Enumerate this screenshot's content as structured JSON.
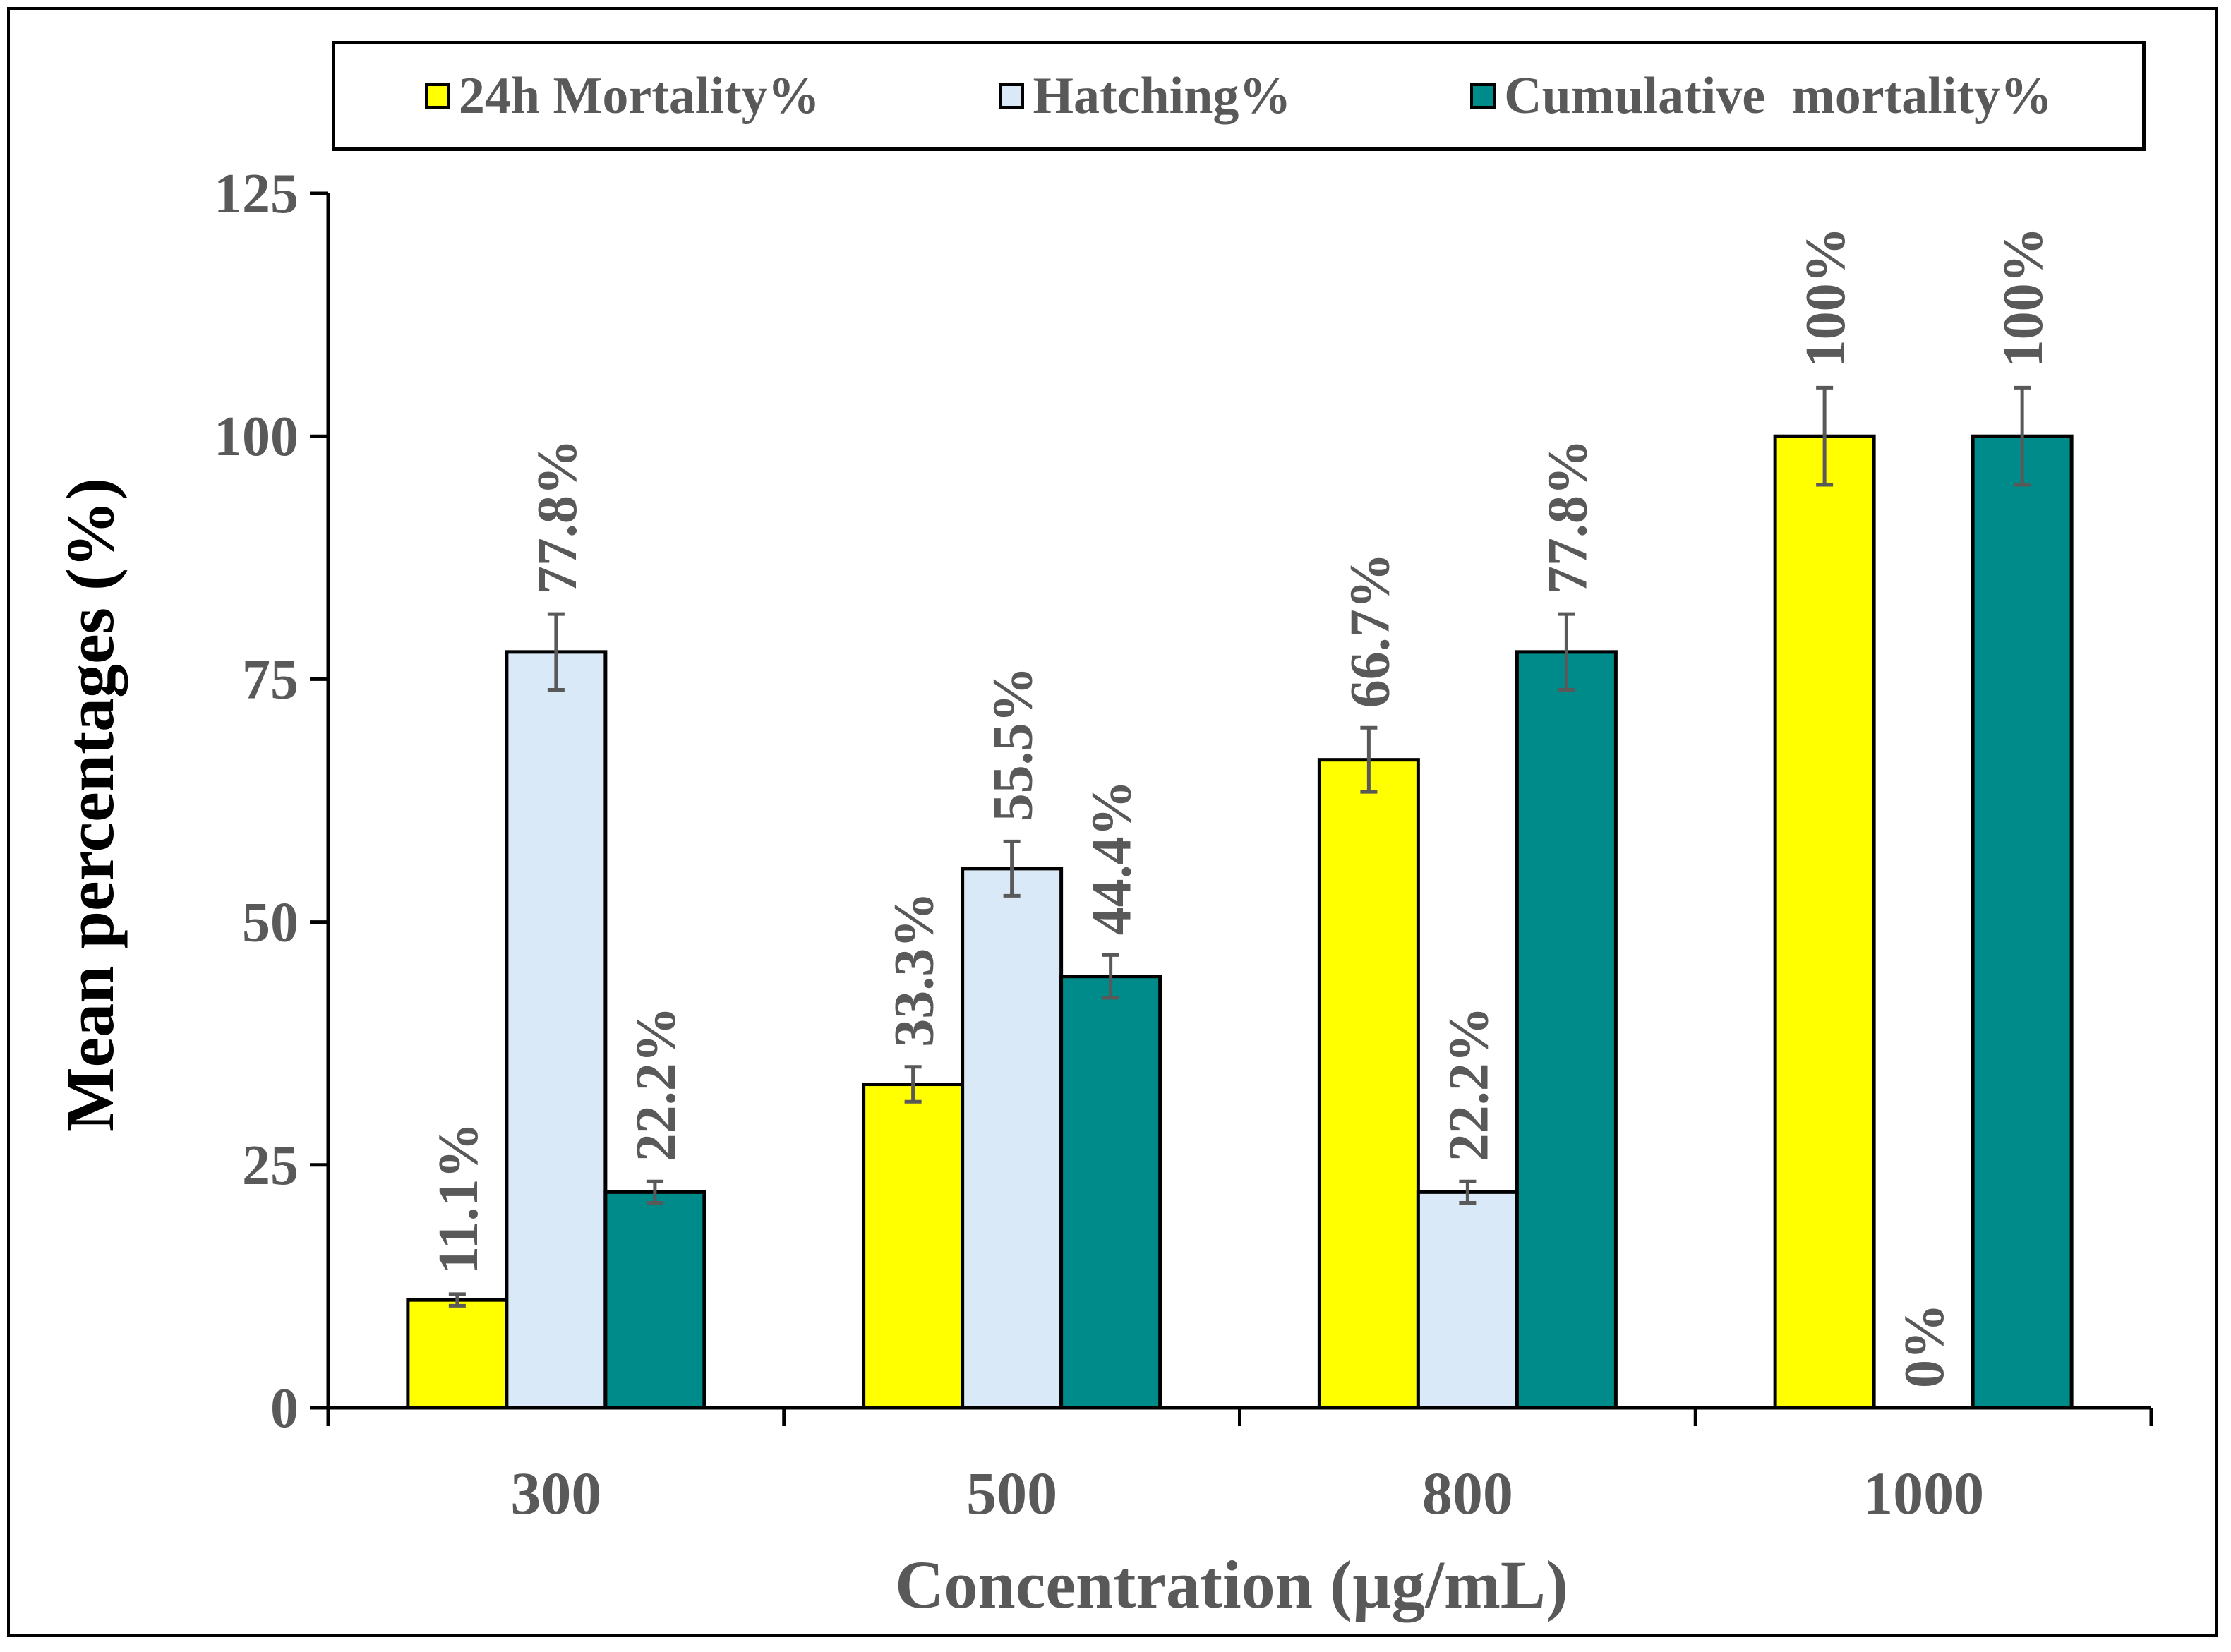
{
  "chart_data": {
    "type": "bar",
    "title": "",
    "xlabel": "Concentration (µg/mL)",
    "ylabel": "Mean percentages (%)",
    "categories": [
      "300",
      "500",
      "800",
      "1000"
    ],
    "ylim": [
      0,
      125
    ],
    "yticks": [
      "0",
      "25",
      "50",
      "75",
      "100",
      "125"
    ],
    "legend_position": "top",
    "grid": false,
    "series": [
      {
        "name": "24h Mortality%",
        "color": "#FFFF00",
        "values": [
          11.1,
          33.3,
          66.7,
          100
        ],
        "errors": [
          0.6,
          1.8,
          3.3,
          5.0
        ],
        "labels": [
          "11.1%",
          "33.3%",
          "66.7%",
          "100%"
        ]
      },
      {
        "name": "Hatching%",
        "color": "#DAE9F7",
        "values": [
          77.8,
          55.5,
          22.2,
          0
        ],
        "errors": [
          3.9,
          2.8,
          1.1,
          0
        ],
        "labels": [
          "77.8%",
          "55.5%",
          "22.2%",
          "0%"
        ]
      },
      {
        "name": "Cumulative  mortality%",
        "color": "#008B8B",
        "values": [
          22.2,
          44.4,
          77.8,
          100
        ],
        "errors": [
          1.1,
          2.2,
          3.9,
          5.0
        ],
        "labels": [
          "22.2%",
          "44.4%",
          "77.8%",
          "100%"
        ]
      }
    ]
  }
}
